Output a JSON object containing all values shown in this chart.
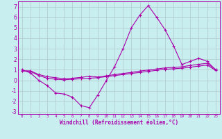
{
  "xlabel": "Windchill (Refroidissement éolien,°C)",
  "bg_color": "#c8eef0",
  "grid_color": "#b0c8c8",
  "line_color": "#aa00aa",
  "line1_x": [
    0,
    1,
    2,
    3,
    4,
    5,
    6,
    7,
    8,
    9,
    10,
    11,
    12,
    13,
    14,
    15,
    16,
    17,
    18,
    19,
    20,
    21,
    22,
    23
  ],
  "line1_y": [
    1.0,
    0.7,
    0.0,
    -0.5,
    -1.2,
    -1.3,
    -1.6,
    -2.4,
    -2.6,
    -1.4,
    -0.05,
    1.3,
    3.0,
    5.0,
    6.2,
    7.1,
    6.0,
    4.8,
    3.3,
    1.5,
    1.8,
    2.1,
    1.8,
    1.0
  ],
  "line2_x": [
    0,
    1,
    2,
    3,
    4,
    5,
    6,
    7,
    8,
    9,
    10,
    11,
    12,
    13,
    14,
    15,
    16,
    17,
    18,
    19,
    20,
    21,
    22,
    23
  ],
  "line2_y": [
    0.9,
    0.85,
    0.45,
    0.2,
    0.1,
    0.05,
    0.1,
    0.15,
    0.2,
    0.25,
    0.35,
    0.45,
    0.55,
    0.65,
    0.75,
    0.85,
    0.95,
    1.05,
    1.1,
    1.15,
    1.25,
    1.35,
    1.45,
    0.95
  ],
  "line3_x": [
    0,
    1,
    2,
    3,
    4,
    5,
    6,
    7,
    8,
    9,
    10,
    11,
    12,
    13,
    14,
    15,
    16,
    17,
    18,
    19,
    20,
    21,
    22,
    23
  ],
  "line3_y": [
    0.9,
    0.9,
    0.55,
    0.35,
    0.25,
    0.15,
    0.2,
    0.28,
    0.38,
    0.32,
    0.42,
    0.55,
    0.65,
    0.75,
    0.88,
    0.98,
    1.08,
    1.18,
    1.23,
    1.28,
    1.42,
    1.52,
    1.62,
    1.02
  ],
  "xlim": [
    -0.5,
    23.5
  ],
  "ylim": [
    -3.2,
    7.5
  ],
  "yticks": [
    -3,
    -2,
    -1,
    0,
    1,
    2,
    3,
    4,
    5,
    6,
    7
  ],
  "xticks": [
    0,
    1,
    2,
    3,
    4,
    5,
    6,
    7,
    8,
    9,
    10,
    11,
    12,
    13,
    14,
    15,
    16,
    17,
    18,
    19,
    20,
    21,
    22,
    23
  ]
}
